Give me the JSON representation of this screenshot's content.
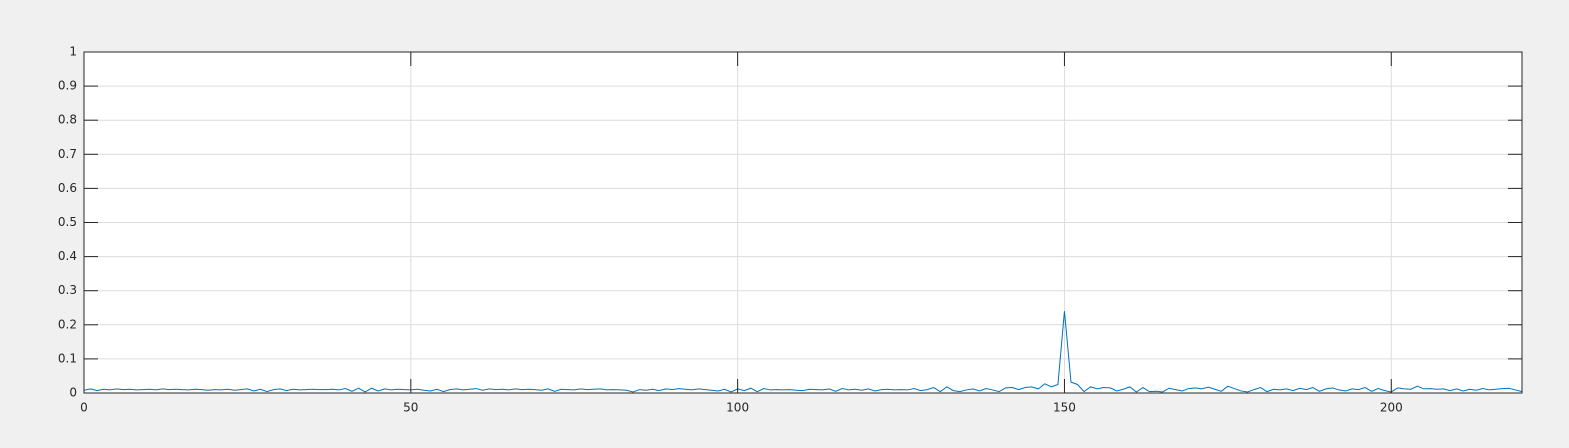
{
  "chart_data": {
    "type": "line",
    "x": [
      0,
      1,
      2,
      3,
      4,
      5,
      6,
      7,
      8,
      9,
      10,
      11,
      12,
      13,
      14,
      15,
      16,
      17,
      18,
      19,
      20,
      21,
      22,
      23,
      24,
      25,
      26,
      27,
      28,
      29,
      30,
      31,
      32,
      33,
      34,
      35,
      36,
      37,
      38,
      39,
      40,
      41,
      42,
      43,
      44,
      45,
      46,
      47,
      48,
      49,
      50,
      51,
      52,
      53,
      54,
      55,
      56,
      57,
      58,
      59,
      60,
      61,
      62,
      63,
      64,
      65,
      66,
      67,
      68,
      69,
      70,
      71,
      72,
      73,
      74,
      75,
      76,
      77,
      78,
      79,
      80,
      81,
      82,
      83,
      84,
      85,
      86,
      87,
      88,
      89,
      90,
      91,
      92,
      93,
      94,
      95,
      96,
      97,
      98,
      99,
      100,
      101,
      102,
      103,
      104,
      105,
      106,
      107,
      108,
      109,
      110,
      111,
      112,
      113,
      114,
      115,
      116,
      117,
      118,
      119,
      120,
      121,
      122,
      123,
      124,
      125,
      126,
      127,
      128,
      129,
      130,
      131,
      132,
      133,
      134,
      135,
      136,
      137,
      138,
      139,
      140,
      141,
      142,
      143,
      144,
      145,
      146,
      147,
      148,
      149,
      150,
      151,
      152,
      153,
      154,
      155,
      156,
      157,
      158,
      159,
      160,
      161,
      162,
      163,
      164,
      165,
      166,
      167,
      168,
      169,
      170,
      171,
      172,
      173,
      174,
      175,
      176,
      177,
      178,
      179,
      180,
      181,
      182,
      183,
      184,
      185,
      186,
      187,
      188,
      189,
      190,
      191,
      192,
      193,
      194,
      195,
      196,
      197,
      198,
      199,
      200,
      201,
      202,
      203,
      204,
      205,
      206,
      207,
      208,
      209,
      210,
      211,
      212,
      213,
      214,
      215,
      216,
      217,
      218,
      219,
      220
    ],
    "series": [
      {
        "color": "#0072bd",
        "values": [
          0.008,
          0.012,
          0.007,
          0.011,
          0.009,
          0.012,
          0.01,
          0.011,
          0.009,
          0.01,
          0.011,
          0.009,
          0.012,
          0.01,
          0.011,
          0.01,
          0.009,
          0.011,
          0.01,
          0.008,
          0.01,
          0.009,
          0.011,
          0.008,
          0.01,
          0.012,
          0.006,
          0.011,
          0.004,
          0.01,
          0.012,
          0.007,
          0.011,
          0.009,
          0.01,
          0.011,
          0.01,
          0.01,
          0.011,
          0.009,
          0.013,
          0.005,
          0.014,
          0.003,
          0.014,
          0.006,
          0.012,
          0.009,
          0.011,
          0.01,
          0.009,
          0.011,
          0.008,
          0.006,
          0.011,
          0.004,
          0.01,
          0.012,
          0.009,
          0.011,
          0.013,
          0.008,
          0.012,
          0.01,
          0.011,
          0.009,
          0.012,
          0.01,
          0.011,
          0.01,
          0.008,
          0.012,
          0.005,
          0.011,
          0.01,
          0.009,
          0.012,
          0.01,
          0.011,
          0.012,
          0.009,
          0.01,
          0.009,
          0.008,
          0.003,
          0.01,
          0.008,
          0.011,
          0.007,
          0.012,
          0.01,
          0.013,
          0.011,
          0.009,
          0.012,
          0.01,
          0.008,
          0.006,
          0.011,
          0.003,
          0.012,
          0.007,
          0.014,
          0.004,
          0.013,
          0.009,
          0.01,
          0.009,
          0.01,
          0.008,
          0.007,
          0.011,
          0.01,
          0.009,
          0.012,
          0.005,
          0.013,
          0.009,
          0.011,
          0.008,
          0.012,
          0.006,
          0.01,
          0.011,
          0.009,
          0.01,
          0.009,
          0.013,
          0.007,
          0.01,
          0.016,
          0.004,
          0.018,
          0.007,
          0.004,
          0.009,
          0.012,
          0.006,
          0.013,
          0.009,
          0.004,
          0.015,
          0.016,
          0.01,
          0.016,
          0.018,
          0.012,
          0.027,
          0.018,
          0.025,
          0.24,
          0.032,
          0.025,
          0.004,
          0.018,
          0.012,
          0.016,
          0.015,
          0.006,
          0.011,
          0.018,
          0.003,
          0.016,
          0.004,
          0.005,
          0.003,
          0.014,
          0.01,
          0.006,
          0.013,
          0.015,
          0.012,
          0.017,
          0.011,
          0.005,
          0.02,
          0.013,
          0.006,
          0.003,
          0.01,
          0.016,
          0.004,
          0.011,
          0.009,
          0.012,
          0.007,
          0.014,
          0.01,
          0.016,
          0.005,
          0.012,
          0.015,
          0.009,
          0.006,
          0.012,
          0.01,
          0.016,
          0.005,
          0.013,
          0.007,
          0.003,
          0.015,
          0.012,
          0.011,
          0.02,
          0.012,
          0.013,
          0.011,
          0.012,
          0.007,
          0.012,
          0.006,
          0.011,
          0.008,
          0.013,
          0.009,
          0.011,
          0.013,
          0.014,
          0.009,
          0.004
        ]
      }
    ],
    "xlim": [
      0,
      220
    ],
    "xticks": [
      0,
      50,
      100,
      150,
      200
    ],
    "ylim": [
      0,
      1
    ],
    "yticks": [
      0,
      0.1,
      0.2,
      0.3,
      0.4,
      0.5,
      0.6,
      0.7,
      0.8,
      0.9,
      1
    ],
    "grid": true
  }
}
